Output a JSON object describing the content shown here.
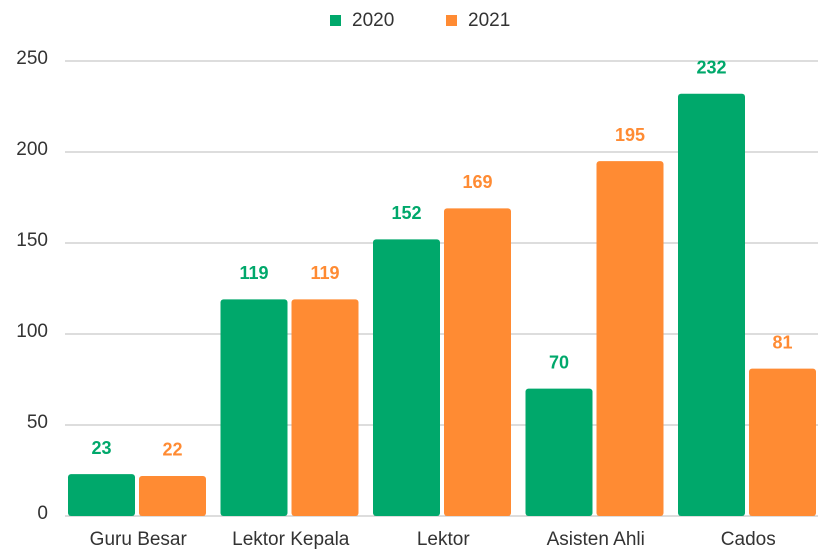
{
  "chart_data": {
    "type": "bar",
    "categories": [
      "Guru Besar",
      "Lektor Kepala",
      "Lektor",
      "Asisten Ahli",
      "Cados"
    ],
    "series": [
      {
        "name": "2020",
        "color": "#00a86b",
        "values": [
          23,
          119,
          152,
          70,
          232
        ]
      },
      {
        "name": "2021",
        "color": "#ff8b33",
        "values": [
          22,
          119,
          169,
          195,
          81
        ]
      }
    ],
    "ylim": [
      0,
      250
    ],
    "yticks": [
      0,
      50,
      100,
      150,
      200,
      250
    ],
    "grid": true,
    "legend": "top"
  }
}
